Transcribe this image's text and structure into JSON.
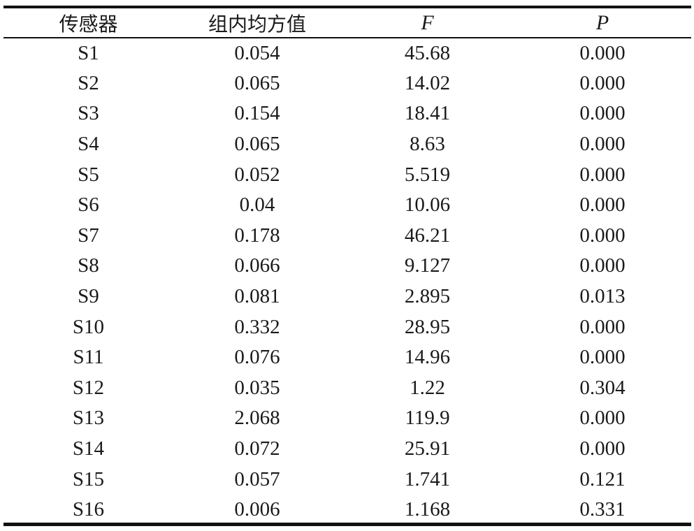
{
  "table": {
    "headers": [
      "传感器",
      "组内均方值",
      "F",
      "P"
    ],
    "rows": [
      [
        "S1",
        "0.054",
        "45.68",
        "0.000"
      ],
      [
        "S2",
        "0.065",
        "14.02",
        "0.000"
      ],
      [
        "S3",
        "0.154",
        "18.41",
        "0.000"
      ],
      [
        "S4",
        "0.065",
        "8.63",
        "0.000"
      ],
      [
        "S5",
        "0.052",
        "5.519",
        "0.000"
      ],
      [
        "S6",
        "0.04",
        "10.06",
        "0.000"
      ],
      [
        "S7",
        "0.178",
        "46.21",
        "0.000"
      ],
      [
        "S8",
        "0.066",
        "9.127",
        "0.000"
      ],
      [
        "S9",
        "0.081",
        "2.895",
        "0.013"
      ],
      [
        "S10",
        "0.332",
        "28.95",
        "0.000"
      ],
      [
        "S11",
        "0.076",
        "14.96",
        "0.000"
      ],
      [
        "S12",
        "0.035",
        "1.22",
        "0.304"
      ],
      [
        "S13",
        "2.068",
        "119.9",
        "0.000"
      ],
      [
        "S14",
        "0.072",
        "25.91",
        "0.000"
      ],
      [
        "S15",
        "0.057",
        "1.741",
        "0.121"
      ],
      [
        "S16",
        "0.006",
        "1.168",
        "0.331"
      ]
    ]
  }
}
